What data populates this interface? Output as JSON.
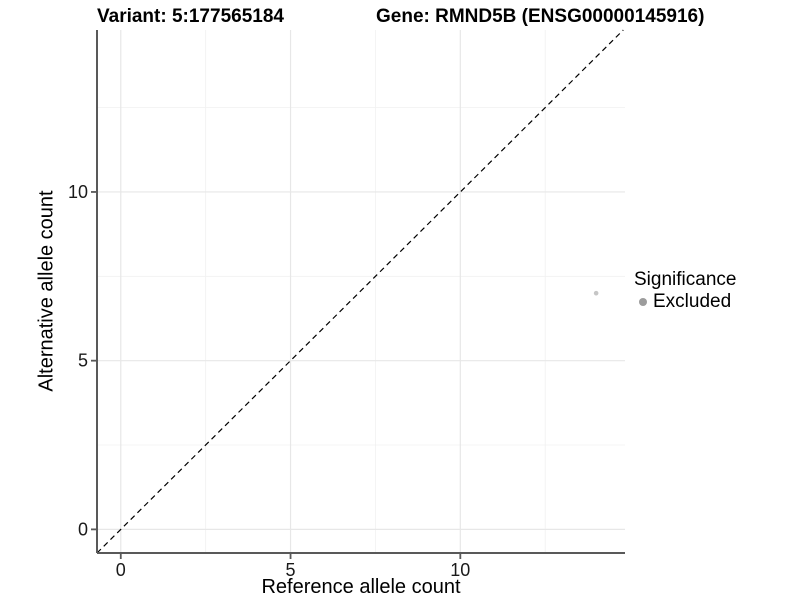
{
  "chart_data": {
    "type": "scatter",
    "titles": {
      "left": "Variant: 5:177565184",
      "right": "Gene: RMND5B (ENSG00000145916)"
    },
    "xlabel": "Reference allele count",
    "ylabel": "Alternative allele count",
    "xlim": [
      -0.7,
      14.85
    ],
    "ylim": [
      -0.7,
      14.8
    ],
    "xticks": [
      "0",
      "5",
      "10"
    ],
    "xtick_values": [
      0,
      5,
      10
    ],
    "yticks": [
      "0",
      "5",
      "10"
    ],
    "ytick_values": [
      0,
      5,
      10
    ],
    "grid": {
      "major": [
        0,
        5,
        10
      ],
      "minor": [
        2.5,
        7.5,
        12.5
      ],
      "major_color": "#e7e7e7",
      "minor_color": "#f1f1f1"
    },
    "identity_line": {
      "slope": 1,
      "intercept": 0,
      "style": "dashed",
      "color": "#000000"
    },
    "points": [
      {
        "x": 14,
        "y": 7,
        "significance": "Excluded",
        "color": "#c6c6c6",
        "radius": 2.3
      }
    ],
    "legend": {
      "title": "Significance",
      "entries": [
        {
          "label": "Excluded",
          "color": "#9c9c9c"
        }
      ]
    },
    "axis": {
      "line_color": "#595959",
      "tick_color": "#595959",
      "label_color": "#1a1a1a"
    }
  }
}
